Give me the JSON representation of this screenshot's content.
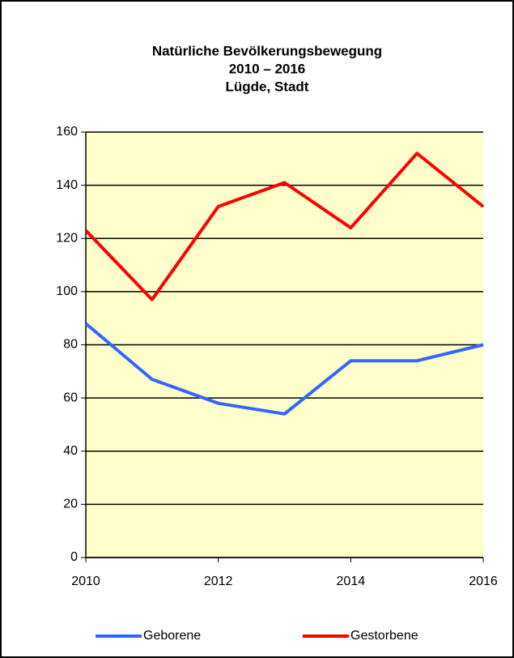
{
  "chart_data": {
    "type": "line",
    "title": [
      "Natürliche Bevölkerungsbewegung",
      "2010 – 2016",
      "Lügde, Stadt"
    ],
    "x": [
      2010,
      2011,
      2012,
      2013,
      2014,
      2015,
      2016
    ],
    "series": [
      {
        "name": "Geborene",
        "color": "#3366ff",
        "values": [
          88,
          67,
          58,
          54,
          74,
          74,
          80
        ]
      },
      {
        "name": "Gestorbene",
        "color": "#ff0000",
        "values": [
          123,
          97,
          132,
          141,
          124,
          152,
          132
        ]
      }
    ],
    "xlim": [
      2010,
      2016
    ],
    "xticks": [
      2010,
      2012,
      2014,
      2016
    ],
    "ylim": [
      0,
      160
    ],
    "yticks": [
      0,
      20,
      40,
      60,
      80,
      100,
      120,
      140,
      160
    ],
    "grid": true,
    "plot_background": "#ffffcc",
    "legend": "bottom"
  }
}
